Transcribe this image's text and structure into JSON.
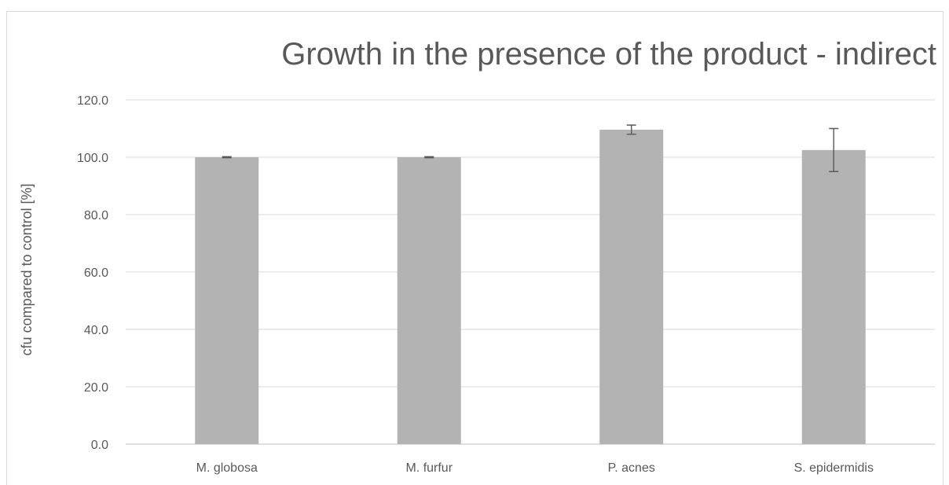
{
  "chart_data": {
    "type": "bar",
    "title": "Growth in the presence of the product - indirect",
    "xlabel": "",
    "ylabel": "cfu compared to control [%]",
    "categories": [
      "M. globosa",
      "M. furfur",
      "P. acnes",
      "S. epidermidis"
    ],
    "values": [
      100.0,
      100.0,
      109.6,
      102.5
    ],
    "errors": [
      0.2,
      0.2,
      1.6,
      7.5
    ],
    "ylim": [
      0,
      120
    ],
    "yticks": [
      0,
      20,
      40,
      60,
      80,
      100,
      120
    ],
    "ytick_labels": [
      "0.0",
      "20.0",
      "40.0",
      "60.0",
      "80.0",
      "100.0",
      "120.0"
    ],
    "grid": true,
    "legend": "none",
    "colors": {
      "bar": "#b3b3b3",
      "grid": "#d9d9d9",
      "text": "#595959",
      "error": "#595959"
    }
  }
}
